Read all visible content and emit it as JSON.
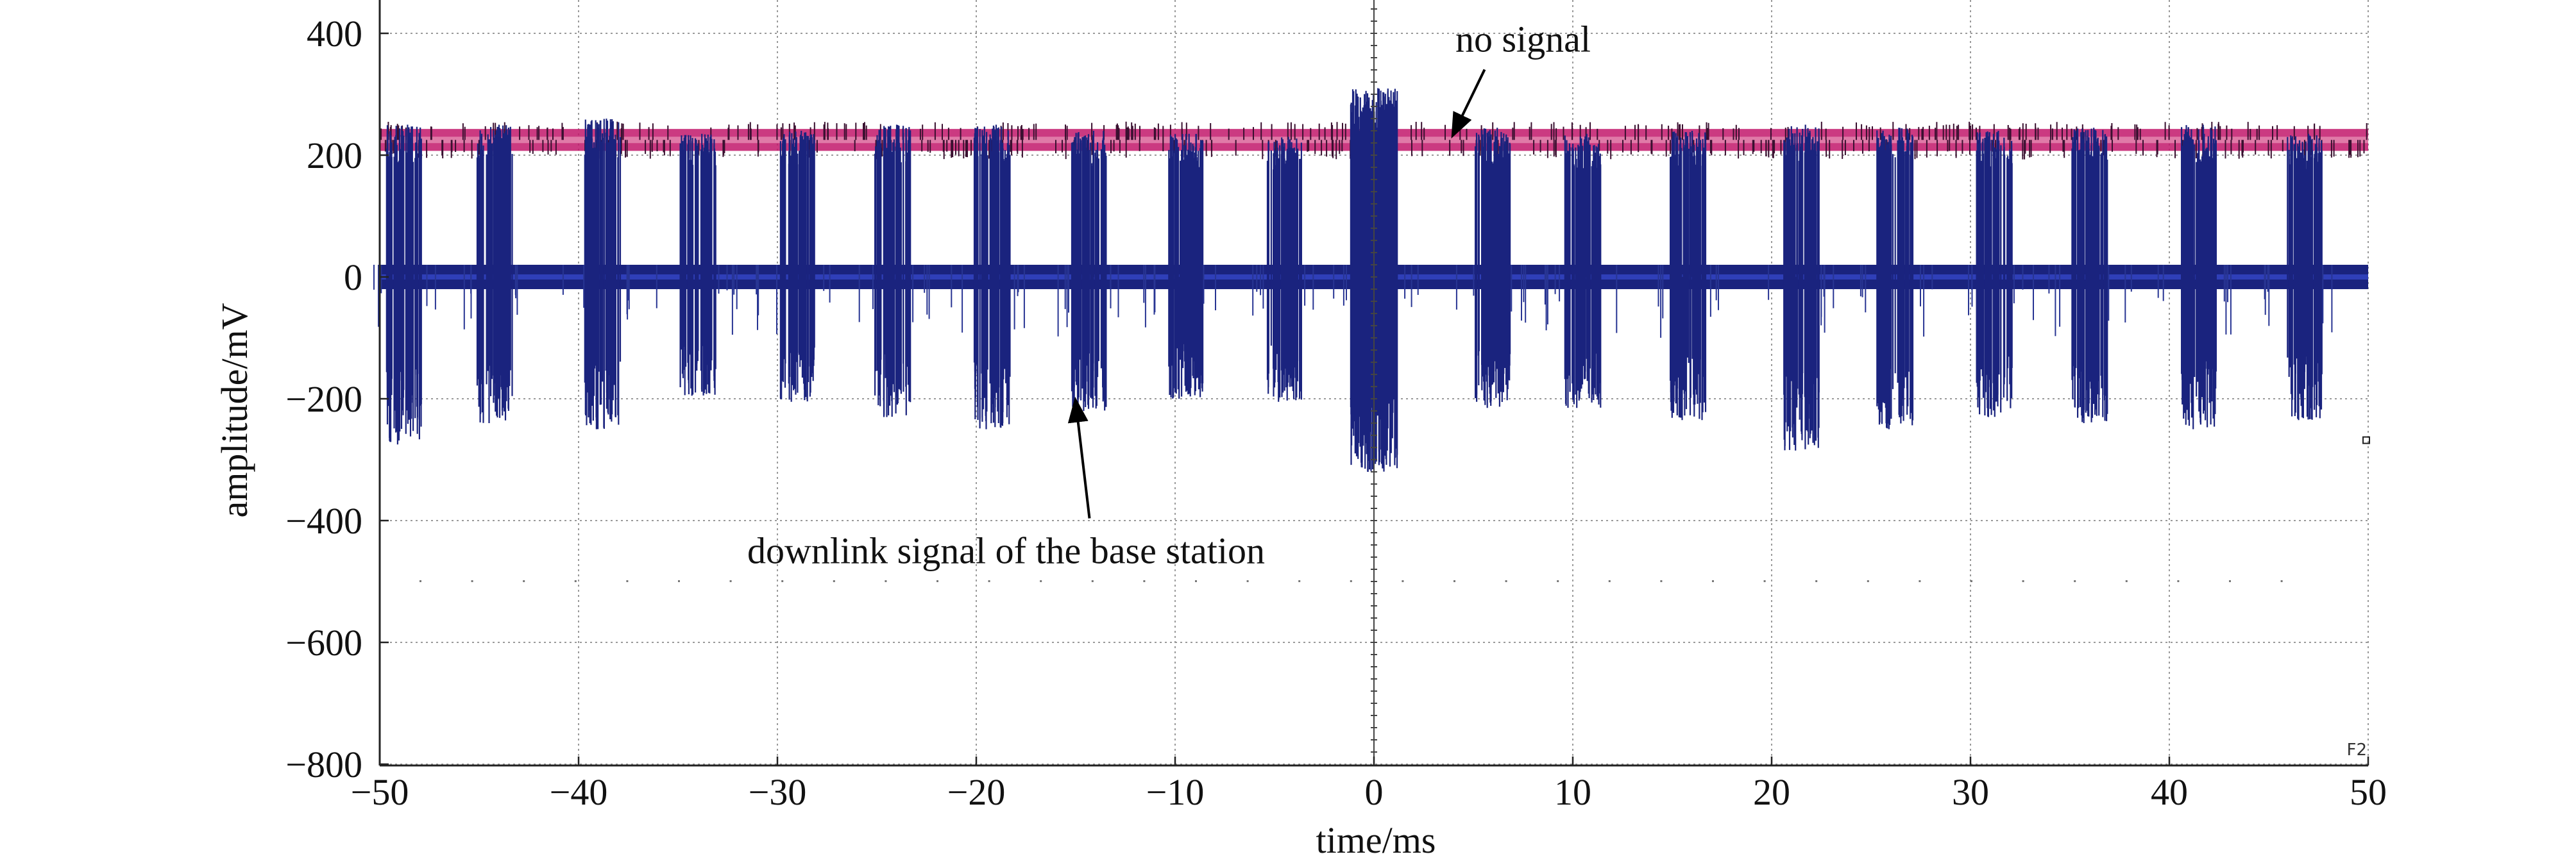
{
  "chart_data": {
    "type": "line",
    "title": "",
    "xlabel": "time/ms",
    "ylabel": "amplitude/mV",
    "xlim": [
      -50,
      50
    ],
    "ylim": [
      -800,
      450
    ],
    "grid": true,
    "x_ticks": [
      -50,
      -40,
      -30,
      -20,
      -10,
      0,
      10,
      20,
      30,
      40,
      50
    ],
    "x_tick_labels": [
      "−50",
      "−40",
      "−30",
      "−20",
      "−10",
      "0",
      "10",
      "20",
      "30",
      "40",
      "50"
    ],
    "y_ticks": [
      -800,
      -600,
      -400,
      -200,
      0,
      200,
      400
    ],
    "y_tick_labels": [
      "−800",
      "−600",
      "−400",
      "−200",
      "0",
      "200",
      "400"
    ],
    "series": [
      {
        "name": "",
        "color": "#c2186b",
        "baseline": 225,
        "band_half_width": 18,
        "peak_max": 262,
        "peak_min": 195,
        "burst_times": [
          -48.8,
          -44.2,
          -38.8,
          -34.0,
          -29.0,
          -24.2,
          -19.2,
          -14.3,
          -9.5,
          -4.5,
          0.0,
          6.0,
          10.5,
          15.8,
          21.5,
          26.2,
          31.2,
          36.0,
          41.5,
          46.8
        ]
      },
      {
        "name": "",
        "color": "#1a237e",
        "baseline": 0,
        "band_half_width": 20,
        "burst_times": [
          -48.8,
          -44.2,
          -38.8,
          -34.0,
          -29.0,
          -24.2,
          -19.2,
          -14.3,
          -9.5,
          -4.5,
          0.0,
          6.0,
          10.5,
          15.8,
          21.5,
          26.2,
          31.2,
          36.0,
          41.5,
          46.8
        ],
        "burst_duration": 1.8,
        "burst_peaks": [
          250,
          250,
          260,
          235,
          240,
          250,
          250,
          240,
          235,
          230,
          310,
          245,
          235,
          240,
          250,
          245,
          240,
          245,
          250,
          235
        ],
        "burst_troughs": [
          -275,
          -240,
          -250,
          -195,
          -205,
          -230,
          -250,
          -220,
          -200,
          -205,
          -320,
          -215,
          -215,
          -235,
          -285,
          -250,
          -230,
          -240,
          -250,
          -235
        ]
      }
    ],
    "annotations": [
      {
        "text": "no signal",
        "x": 7.5,
        "y": 370,
        "arrow_to": [
          4.0,
          235
        ]
      },
      {
        "text": "downlink signal of the base station",
        "x": -18.5,
        "y": -470,
        "arrow_to": [
          -15.0,
          -205
        ]
      }
    ],
    "corner_label": "F2"
  }
}
